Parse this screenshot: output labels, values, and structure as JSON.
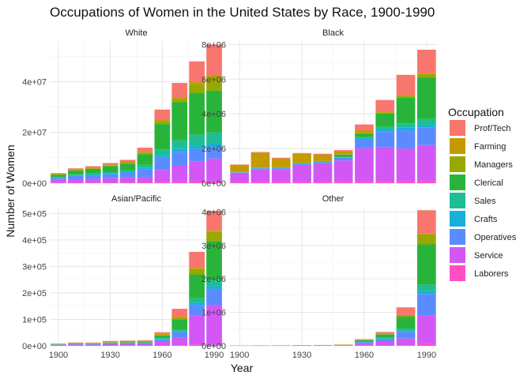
{
  "chart_data": {
    "type": "bar",
    "stacked": true,
    "title": "Occupations of Women in the United States by Race, 1900-1990",
    "xlabel": "Year",
    "ylabel": "Number of Women",
    "legend_title": "Occupation",
    "legend_position": "right",
    "grid": true,
    "x": [
      1900,
      1910,
      1920,
      1930,
      1940,
      1950,
      1960,
      1970,
      1980,
      1990
    ],
    "x_ticks": [
      "1900",
      "1930",
      "1960",
      "1990"
    ],
    "series_order": [
      "Laborers",
      "Service",
      "Operatives",
      "Crafts",
      "Sales",
      "Clerical",
      "Managers",
      "Farming",
      "Prof/Tech"
    ],
    "legend": [
      {
        "name": "Prof/Tech",
        "color": "#F8766D"
      },
      {
        "name": "Farming",
        "color": "#C49A00"
      },
      {
        "name": "Managers",
        "color": "#99A800"
      },
      {
        "name": "Clerical",
        "color": "#28B43A"
      },
      {
        "name": "Sales",
        "color": "#1DBE96"
      },
      {
        "name": "Crafts",
        "color": "#18B0D9"
      },
      {
        "name": "Operatives",
        "color": "#5B8CFF"
      },
      {
        "name": "Service",
        "color": "#D257F5"
      },
      {
        "name": "Laborers",
        "color": "#FF4FC4"
      }
    ],
    "facets": [
      {
        "name": "White",
        "ylim": [
          0,
          56000000
        ],
        "y_ticks": [
          0,
          20000000,
          40000000
        ],
        "y_tick_labels": [
          "0e+00",
          "2e+07",
          "4e+07"
        ],
        "series": {
          "Laborers": [
            100000,
            150000,
            200000,
            150000,
            200000,
            300000,
            400000,
            500000,
            600000,
            700000
          ],
          "Service": [
            1200000,
            1400000,
            1500000,
            1800000,
            2000000,
            2200000,
            4800000,
            6500000,
            8000000,
            9000000
          ],
          "Operatives": [
            800000,
            1300000,
            1400000,
            1600000,
            2000000,
            3000000,
            4800000,
            5400000,
            4800000,
            4500000
          ],
          "Crafts": [
            200000,
            300000,
            300000,
            300000,
            300000,
            500000,
            800000,
            1200000,
            1500000,
            1500000
          ],
          "Sales": [
            200000,
            400000,
            400000,
            500000,
            600000,
            1200000,
            2500000,
            3300000,
            4200000,
            4300000
          ],
          "Clerical": [
            800000,
            1400000,
            1800000,
            2400000,
            2600000,
            4200000,
            10000000,
            15000000,
            16500000,
            16500000
          ],
          "Managers": [
            100000,
            200000,
            200000,
            300000,
            400000,
            700000,
            1200000,
            1500000,
            3500000,
            5500000
          ],
          "Farming": [
            400000,
            400000,
            400000,
            300000,
            300000,
            300000,
            400000,
            500000,
            700000,
            600000
          ],
          "Prof/Tech": [
            200000,
            300000,
            500000,
            600000,
            800000,
            1600000,
            4100000,
            5600000,
            8200000,
            12000000
          ]
        }
      },
      {
        "name": "Black",
        "ylim": [
          0,
          8200000
        ],
        "y_ticks": [
          0,
          2000000,
          4000000,
          6000000,
          8000000
        ],
        "y_tick_labels": [
          "0e+00",
          "2e+06",
          "4e+06",
          "6e+06",
          "8e+06"
        ],
        "series": {
          "Laborers": [
            50000,
            60000,
            60000,
            60000,
            60000,
            60000,
            60000,
            80000,
            100000,
            120000
          ],
          "Service": [
            550000,
            750000,
            750000,
            1000000,
            1050000,
            1250000,
            1950000,
            2000000,
            1900000,
            2080000
          ],
          "Operatives": [
            20000,
            40000,
            50000,
            60000,
            90000,
            160000,
            540000,
            920000,
            1050000,
            1000000
          ],
          "Crafts": [
            10000,
            20000,
            20000,
            20000,
            20000,
            30000,
            50000,
            100000,
            150000,
            150000
          ],
          "Sales": [
            10000,
            10000,
            10000,
            10000,
            10000,
            30000,
            50000,
            150000,
            250000,
            350000
          ],
          "Clerical": [
            10000,
            20000,
            30000,
            30000,
            40000,
            120000,
            200000,
            770000,
            1500000,
            2400000
          ],
          "Managers": [
            10000,
            10000,
            10000,
            10000,
            20000,
            20000,
            50000,
            50000,
            100000,
            200000
          ],
          "Farming": [
            400000,
            850000,
            500000,
            500000,
            350000,
            180000,
            150000,
            80000,
            50000,
            50000
          ],
          "Prof/Tech": [
            20000,
            40000,
            40000,
            50000,
            60000,
            60000,
            340000,
            650000,
            1150000,
            1350000
          ]
        }
      },
      {
        "name": "Asian/Pacific",
        "ylim": [
          0,
          525000
        ],
        "y_ticks": [
          0,
          100000,
          200000,
          300000,
          400000,
          500000
        ],
        "y_tick_labels": [
          "0e+00",
          "1e+05",
          "2e+05",
          "3e+05",
          "4e+05",
          "5e+05"
        ],
        "series": {
          "Laborers": [
            500,
            800,
            800,
            1000,
            1000,
            1000,
            1500,
            2500,
            4000,
            5000
          ],
          "Service": [
            3000,
            4000,
            3500,
            5000,
            5000,
            5000,
            15000,
            30000,
            110000,
            150000
          ],
          "Operatives": [
            1500,
            2500,
            2500,
            3500,
            4000,
            4000,
            8000,
            18000,
            40000,
            60000
          ],
          "Crafts": [
            200,
            300,
            300,
            500,
            500,
            800,
            2000,
            4000,
            8000,
            10000
          ],
          "Sales": [
            300,
            500,
            500,
            1000,
            1000,
            1500,
            3000,
            6000,
            18000,
            25000
          ],
          "Clerical": [
            500,
            800,
            1000,
            2000,
            2000,
            3000,
            10000,
            40000,
            90000,
            145000
          ],
          "Managers": [
            300,
            500,
            500,
            800,
            1000,
            1200,
            2000,
            6000,
            20000,
            35000
          ],
          "Farming": [
            2000,
            2500,
            2500,
            3500,
            4000,
            2500,
            4000,
            4000,
            5000,
            5000
          ],
          "Prof/Tech": [
            500,
            600,
            800,
            1200,
            1500,
            2000,
            6000,
            29500,
            60000,
            75000
          ]
        }
      },
      {
        "name": "Other",
        "ylim": [
          0,
          4150000
        ],
        "y_ticks": [
          0,
          1000000,
          2000000,
          3000000,
          4000000
        ],
        "y_tick_labels": [
          "0e+00",
          "1e+06",
          "2e+06",
          "3e+06",
          "4e+06"
        ],
        "series": {
          "Laborers": [
            1000,
            1500,
            2000,
            2000,
            3000,
            4000,
            5000,
            10000,
            20000,
            50000
          ],
          "Service": [
            2000,
            3000,
            4000,
            5000,
            6000,
            10000,
            60000,
            120000,
            200000,
            850000
          ],
          "Operatives": [
            1000,
            1500,
            2000,
            3000,
            3000,
            5000,
            40000,
            80000,
            200000,
            650000
          ],
          "Crafts": [
            200,
            300,
            300,
            400,
            500,
            1000,
            5000,
            10000,
            30000,
            80000
          ],
          "Sales": [
            200,
            300,
            300,
            500,
            500,
            1000,
            10000,
            20000,
            70000,
            200000
          ],
          "Clerical": [
            300,
            500,
            800,
            1000,
            1500,
            5000,
            50000,
            100000,
            350000,
            1200000
          ],
          "Managers": [
            200,
            300,
            300,
            500,
            500,
            1000,
            5000,
            10000,
            50000,
            300000
          ],
          "Farming": [
            5000,
            6000,
            6000,
            8000,
            8000,
            8000,
            5000,
            5000,
            5000,
            20000
          ],
          "Prof/Tech": [
            1000,
            1500,
            1800,
            2500,
            3000,
            5000,
            20000,
            60000,
            225000,
            700000
          ]
        }
      }
    ]
  }
}
